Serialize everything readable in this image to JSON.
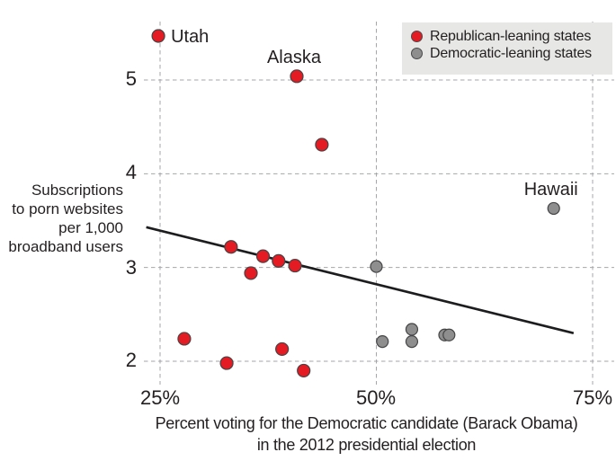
{
  "chart_data": {
    "type": "scatter",
    "title": "",
    "xlabel_line1": "Percent voting for the Democratic candidate (Barack Obama)",
    "xlabel_line2": "in the 2012 presidential election",
    "ylabel_lines": [
      "Subscriptions",
      "to porn websites",
      "per 1,000",
      "broadband users"
    ],
    "xlim": [
      25,
      75
    ],
    "ylim": [
      2,
      5
    ],
    "grid": "dashed",
    "legend_position": "top-right",
    "xticks": [
      {
        "value": 25,
        "label": "25%"
      },
      {
        "value": 50,
        "label": "50%"
      },
      {
        "value": 75,
        "label": "75%"
      }
    ],
    "yticks": [
      {
        "value": 2,
        "label": "2"
      },
      {
        "value": 3,
        "label": "3"
      },
      {
        "value": 4,
        "label": "4"
      },
      {
        "value": 5,
        "label": "5"
      }
    ],
    "series": [
      {
        "name": "Republican-leaning states",
        "color": "#e41b23",
        "points": [
          {
            "x": 24.8,
            "y": 5.47,
            "label": "Utah",
            "label_pos": "right"
          },
          {
            "x": 40.8,
            "y": 5.04,
            "label": "Alaska",
            "label_pos": "above"
          },
          {
            "x": 43.7,
            "y": 4.31
          },
          {
            "x": 33.2,
            "y": 3.22
          },
          {
            "x": 36.9,
            "y": 3.12
          },
          {
            "x": 38.7,
            "y": 3.07
          },
          {
            "x": 40.6,
            "y": 3.02
          },
          {
            "x": 35.5,
            "y": 2.94
          },
          {
            "x": 27.8,
            "y": 2.24
          },
          {
            "x": 39.1,
            "y": 2.13
          },
          {
            "x": 32.7,
            "y": 1.98
          },
          {
            "x": 41.6,
            "y": 1.9
          }
        ]
      },
      {
        "name": "Democratic-leaning states",
        "color": "#8e8e8e",
        "points": [
          {
            "x": 70.5,
            "y": 3.63,
            "label": "Hawaii",
            "label_pos": "above"
          },
          {
            "x": 50.0,
            "y": 3.01
          },
          {
            "x": 50.7,
            "y": 2.21
          },
          {
            "x": 54.1,
            "y": 2.34
          },
          {
            "x": 54.1,
            "y": 2.21
          },
          {
            "x": 57.9,
            "y": 2.28
          },
          {
            "x": 58.4,
            "y": 2.28
          }
        ]
      }
    ],
    "trendline": {
      "x_start": 23.4,
      "y_start": 3.43,
      "x_end": 72.8,
      "y_end": 2.3
    }
  }
}
